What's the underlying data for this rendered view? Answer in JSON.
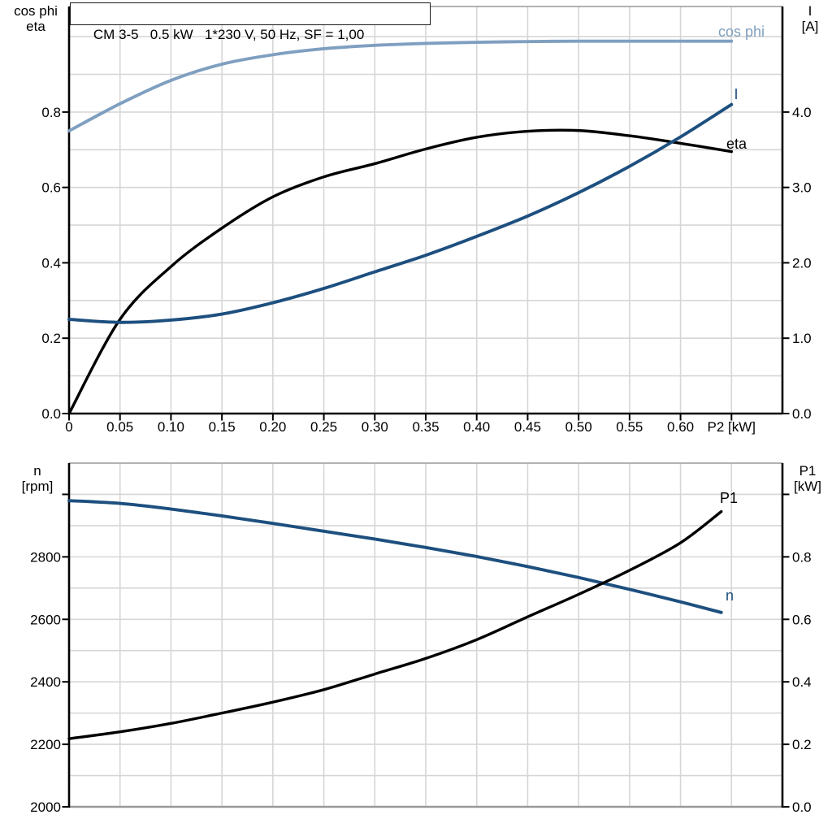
{
  "title_box": {
    "text": "CM 3-5   0.5 kW   1*230 V, 50 Hz, SF = 1,00"
  },
  "axis_titles": {
    "top_left": [
      "cos phi",
      "eta"
    ],
    "top_right": [
      "I",
      "[A]"
    ],
    "bottom_left": [
      "n",
      "[rpm]"
    ],
    "bottom_right": [
      "P1",
      "[kW]"
    ]
  },
  "colors": {
    "black": "#000000",
    "dark_blue": "#1d4f7f",
    "light_blue": "#7f9fc0",
    "grid": "#d6d6d6",
    "frame_gray": "#999999",
    "text": "#000000"
  },
  "chart_data": [
    {
      "type": "line",
      "title": "CM 3-5  0.5 kW  1*230 V, 50 Hz, SF = 1,00",
      "xlabel": "P2 [kW]",
      "xlim": [
        0,
        0.7
      ],
      "x": [
        0,
        0.05,
        0.1,
        0.15,
        0.2,
        0.25,
        0.3,
        0.35,
        0.4,
        0.45,
        0.5,
        0.55,
        0.6,
        0.65
      ],
      "x_ticks": [
        0,
        0.05,
        0.1,
        0.15,
        0.2,
        0.25,
        0.3,
        0.35,
        0.4,
        0.45,
        0.5,
        0.55,
        0.6,
        0.65
      ],
      "x_tick_labels": [
        "0",
        "0.05",
        "0.10",
        "0.15",
        "0.20",
        "0.25",
        "0.30",
        "0.35",
        "0.40",
        "0.45",
        "0.50",
        "0.55",
        "0.60",
        "P2 [kW]"
      ],
      "v_grid": [
        0.05,
        0.1,
        0.15,
        0.2,
        0.25,
        0.3,
        0.35,
        0.4,
        0.45,
        0.5,
        0.55,
        0.6,
        0.65
      ],
      "left_axis": {
        "label": "cos phi / eta",
        "lim": [
          0,
          1.08
        ],
        "ticks": [
          0.0,
          0.2,
          0.4,
          0.6,
          0.8
        ],
        "tick_labels": [
          "0.0",
          "0.2",
          "0.4",
          "0.6",
          "0.8"
        ],
        "grid": [
          0.1,
          0.2,
          0.3,
          0.4,
          0.5,
          0.6,
          0.7,
          0.8,
          0.9,
          1.0
        ]
      },
      "right_axis": {
        "label": "I [A]",
        "lim": [
          0,
          5.4
        ],
        "ticks": [
          0.0,
          1.0,
          2.0,
          3.0,
          4.0
        ],
        "tick_labels": [
          "0.0",
          "1.0",
          "2.0",
          "3.0",
          "4.0"
        ]
      },
      "legend": "inline-curve-labels",
      "series": [
        {
          "name": "cos phi",
          "axis": "left",
          "color": "light_blue",
          "values": [
            0.75,
            0.822,
            0.884,
            0.927,
            0.952,
            0.968,
            0.977,
            0.982,
            0.985,
            0.987,
            0.988,
            0.988,
            0.988,
            0.988
          ]
        },
        {
          "name": "eta",
          "axis": "left",
          "color": "black",
          "values": [
            0.0,
            0.25,
            0.39,
            0.492,
            0.575,
            0.628,
            0.663,
            0.702,
            0.733,
            0.749,
            0.751,
            0.737,
            0.717,
            0.695
          ]
        },
        {
          "name": "I",
          "axis": "right",
          "color": "dark_blue",
          "values": [
            1.25,
            1.21,
            1.24,
            1.32,
            1.47,
            1.66,
            1.88,
            2.1,
            2.35,
            2.62,
            2.93,
            3.28,
            3.67,
            4.1
          ]
        }
      ]
    },
    {
      "type": "line",
      "title": "",
      "xlabel": "",
      "xlim": [
        0,
        0.7
      ],
      "x": [
        0,
        0.05,
        0.1,
        0.15,
        0.2,
        0.25,
        0.3,
        0.35,
        0.4,
        0.45,
        0.5,
        0.55,
        0.6,
        0.64
      ],
      "x_ticks": [],
      "x_tick_labels": [],
      "v_grid": [
        0.05,
        0.1,
        0.15,
        0.2,
        0.25,
        0.3,
        0.35,
        0.4,
        0.45,
        0.5,
        0.55,
        0.6,
        0.65
      ],
      "left_axis": {
        "label": "n [rpm]",
        "lim": [
          2000,
          3100
        ],
        "ticks": [
          2000,
          2200,
          2400,
          2600,
          2800,
          3000
        ],
        "tick_labels": [
          "2000",
          "2200",
          "2400",
          "2600",
          "2800",
          ""
        ],
        "grid": [
          2100,
          2200,
          2300,
          2400,
          2500,
          2600,
          2700,
          2800,
          2900,
          3000
        ]
      },
      "right_axis": {
        "label": "P1 [kW]",
        "lim": [
          0,
          1.1
        ],
        "ticks": [
          0.0,
          0.2,
          0.4,
          0.6,
          0.8,
          1.0
        ],
        "tick_labels": [
          "0.0",
          "0.2",
          "0.4",
          "0.6",
          "0.8",
          ""
        ]
      },
      "legend": "inline-curve-labels",
      "series": [
        {
          "name": "n",
          "axis": "left",
          "color": "dark_blue",
          "values": [
            2980,
            2971,
            2953,
            2931,
            2907,
            2882,
            2857,
            2830,
            2801,
            2769,
            2734,
            2696,
            2656,
            2622
          ]
        },
        {
          "name": "P1",
          "axis": "right",
          "color": "black",
          "values": [
            0.218,
            0.24,
            0.267,
            0.3,
            0.335,
            0.375,
            0.425,
            0.475,
            0.535,
            0.608,
            0.68,
            0.757,
            0.845,
            0.945
          ]
        }
      ]
    }
  ]
}
